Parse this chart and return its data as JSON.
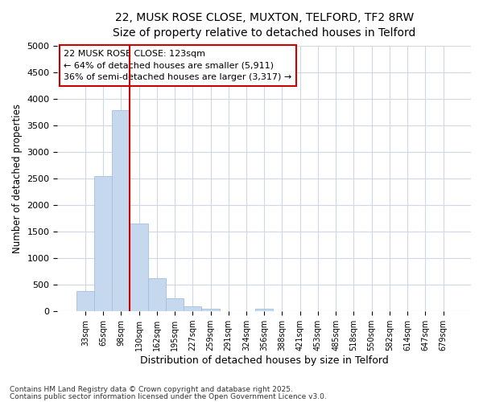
{
  "title_line1": "22, MUSK ROSE CLOSE, MUXTON, TELFORD, TF2 8RW",
  "title_line2": "Size of property relative to detached houses in Telford",
  "xlabel": "Distribution of detached houses by size in Telford",
  "ylabel": "Number of detached properties",
  "categories": [
    "33sqm",
    "65sqm",
    "98sqm",
    "130sqm",
    "162sqm",
    "195sqm",
    "227sqm",
    "259sqm",
    "291sqm",
    "324sqm",
    "356sqm",
    "388sqm",
    "421sqm",
    "453sqm",
    "485sqm",
    "518sqm",
    "550sqm",
    "582sqm",
    "614sqm",
    "647sqm",
    "679sqm"
  ],
  "values": [
    375,
    2550,
    3780,
    1650,
    620,
    250,
    100,
    50,
    0,
    0,
    55,
    0,
    0,
    0,
    0,
    0,
    0,
    0,
    0,
    0,
    0
  ],
  "bar_color": "#c5d8ee",
  "bar_edgecolor": "#a0c0e0",
  "redline_x": 2.5,
  "ylim": [
    0,
    5000
  ],
  "yticks": [
    0,
    500,
    1000,
    1500,
    2000,
    2500,
    3000,
    3500,
    4000,
    4500,
    5000
  ],
  "annotation_title": "22 MUSK ROSE CLOSE: 123sqm",
  "annotation_line2": "← 64% of detached houses are smaller (5,911)",
  "annotation_line3": "36% of semi-detached houses are larger (3,317) →",
  "annotation_box_color": "#cc0000",
  "footer_line1": "Contains HM Land Registry data © Crown copyright and database right 2025.",
  "footer_line2": "Contains public sector information licensed under the Open Government Licence v3.0.",
  "fig_background": "#ffffff",
  "plot_background": "#ffffff",
  "grid_color": "#d0d8e8"
}
